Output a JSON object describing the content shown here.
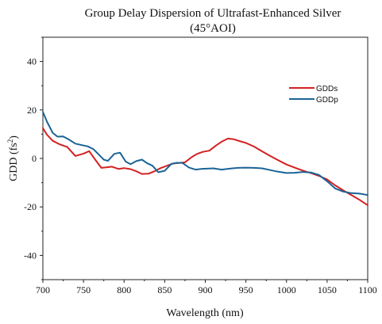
{
  "chart_data": {
    "type": "line",
    "title": "Group Delay Dispersion of Ultrafast-Enhanced Silver",
    "subtitle": "(45°AOI)",
    "xlabel": "Wavelength (nm)",
    "ylabel_main": "GDD (fs",
    "ylabel_sup": "2",
    "ylabel_close": ")",
    "xlim": [
      700,
      1100
    ],
    "ylim": [
      -50,
      50
    ],
    "xticks": [
      700,
      750,
      800,
      850,
      900,
      950,
      1000,
      1050,
      1100
    ],
    "yticks": [
      -40,
      -20,
      0,
      20,
      40
    ],
    "grid": false,
    "legend_position": "top-right",
    "series": [
      {
        "name": "GDDs",
        "color": "#d42020",
        "x": [
          700,
          705,
          712,
          720,
          730,
          740,
          750,
          757,
          765,
          772,
          778,
          785,
          793,
          800,
          808,
          815,
          822,
          830,
          838,
          845,
          852,
          860,
          867,
          875,
          883,
          890,
          897,
          905,
          913,
          920,
          928,
          935,
          942,
          950,
          960,
          970,
          980,
          990,
          1000,
          1010,
          1020,
          1030,
          1040,
          1050,
          1060,
          1070,
          1080,
          1090,
          1100
        ],
        "y": [
          12.5,
          9.8,
          7.3,
          5.9,
          4.7,
          1.0,
          2.0,
          3.0,
          -0.8,
          -3.9,
          -3.7,
          -3.4,
          -4.3,
          -4.0,
          -4.4,
          -5.3,
          -6.4,
          -6.3,
          -5.2,
          -4.0,
          -3.1,
          -2.1,
          -1.9,
          -1.6,
          0.5,
          1.9,
          2.7,
          3.2,
          5.3,
          6.9,
          8.2,
          7.9,
          7.2,
          6.4,
          4.9,
          2.9,
          1.0,
          -0.8,
          -2.5,
          -3.8,
          -5.0,
          -6.0,
          -7.2,
          -8.7,
          -11.1,
          -13.2,
          -15.1,
          -17.1,
          -19.3
        ]
      },
      {
        "name": "GDDp",
        "color": "#1a6496",
        "x": [
          700,
          705,
          712,
          718,
          725,
          732,
          740,
          748,
          755,
          762,
          768,
          775,
          780,
          788,
          795,
          802,
          808,
          815,
          822,
          828,
          835,
          842,
          850,
          858,
          865,
          872,
          880,
          888,
          895,
          902,
          910,
          920,
          930,
          940,
          950,
          960,
          970,
          980,
          990,
          1000,
          1010,
          1020,
          1030,
          1040,
          1050,
          1060,
          1070,
          1080,
          1090,
          1100
        ],
        "y": [
          19.2,
          15.2,
          10.6,
          9.0,
          9.1,
          7.8,
          6.1,
          5.5,
          5.0,
          3.9,
          1.9,
          -0.5,
          -1.0,
          1.9,
          2.4,
          -1.3,
          -2.4,
          -1.1,
          -0.5,
          -1.9,
          -3.0,
          -5.7,
          -5.1,
          -2.3,
          -1.8,
          -1.9,
          -3.8,
          -4.6,
          -4.3,
          -4.2,
          -4.1,
          -4.6,
          -4.2,
          -3.9,
          -3.8,
          -3.9,
          -4.1,
          -4.8,
          -5.5,
          -6.0,
          -5.9,
          -5.6,
          -5.8,
          -6.8,
          -9.4,
          -12.4,
          -13.7,
          -14.3,
          -14.5,
          -15.1
        ]
      }
    ]
  }
}
